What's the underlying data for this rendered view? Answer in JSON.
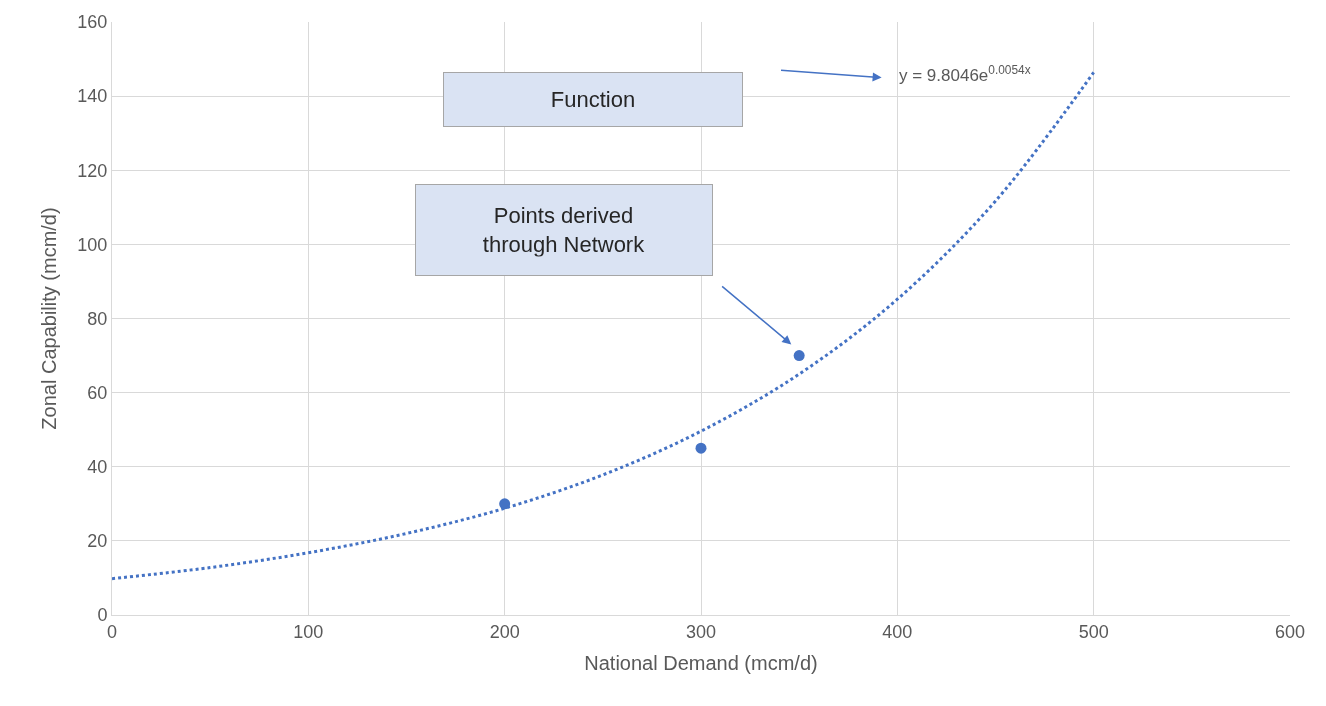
{
  "chart_data": {
    "type": "scatter",
    "xlabel": "National Demand (mcm/d)",
    "ylabel": "Zonal Capability (mcm/d)",
    "xlim": [
      0,
      600
    ],
    "xticks": [
      0,
      100,
      200,
      300,
      400,
      500,
      600
    ],
    "ylim": [
      0,
      160
    ],
    "yticks": [
      0,
      20,
      40,
      60,
      80,
      100,
      120,
      140,
      160
    ],
    "grid": true,
    "series": [
      {
        "color": "#4472c4",
        "marker": "circle",
        "x": [
          200,
          300,
          350
        ],
        "values": [
          30,
          45,
          70
        ]
      },
      {
        "type": "line",
        "color": "#4472c4",
        "marker": "none",
        "line_style": "dotted",
        "x": [
          0,
          50,
          100,
          150,
          200,
          250,
          300,
          350,
          400,
          450,
          500
        ],
        "values": [
          9.8,
          12.8,
          16.8,
          22,
          28.8,
          37.8,
          49.6,
          65,
          85.2,
          111.7,
          146.4
        ]
      }
    ],
    "annotations": [
      "Function",
      "y = 9.8046e$^{0.0054x}$",
      "Points derived\nthrough Network"
    ]
  }
}
